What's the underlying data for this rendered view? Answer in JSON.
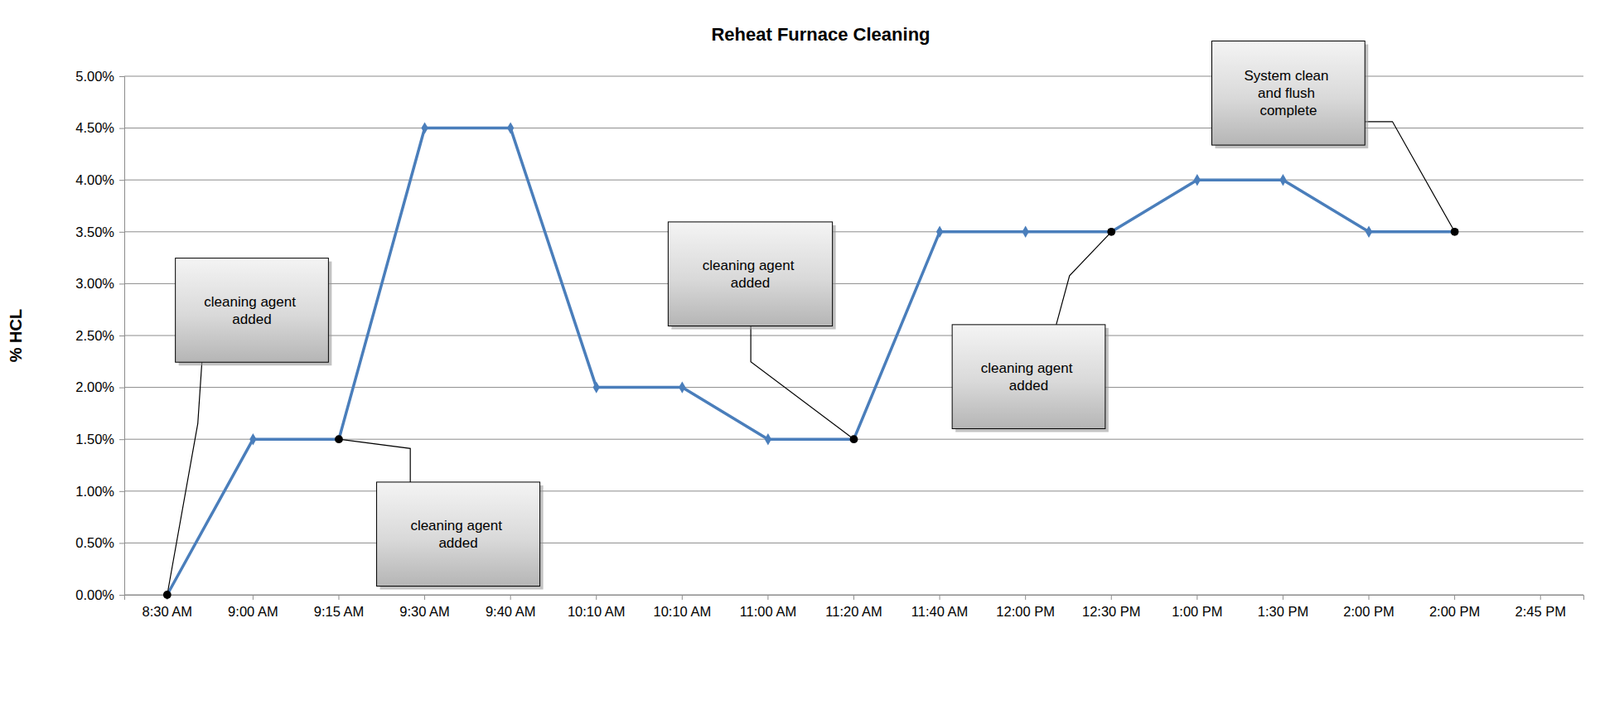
{
  "chart_data": {
    "type": "line",
    "title": "Reheat Furnace Cleaning",
    "y_label": "% HCL",
    "categories": [
      "8:30 AM",
      "9:00 AM",
      "9:15 AM",
      "9:30 AM",
      "9:40 AM",
      "10:10 AM",
      "10:10 AM",
      "11:00 AM",
      "11:20 AM",
      "11:40 AM",
      "12:00 PM",
      "12:30 PM",
      "1:00 PM",
      "1:30 PM",
      "2:00 PM",
      "2:00 PM",
      "2:45 PM"
    ],
    "values": [
      0,
      1.5,
      1.5,
      4.5,
      4.5,
      2.0,
      2.0,
      1.5,
      1.5,
      3.5,
      3.5,
      3.5,
      4.0,
      4.0,
      3.5,
      3.5,
      null
    ],
    "color": "#4a7ebb",
    "marker": "diamond",
    "ylim": [
      0,
      5
    ],
    "yticks": [
      {
        "value": 0,
        "label": "0.00%"
      },
      {
        "value": 0.5,
        "label": "0.50%"
      },
      {
        "value": 1,
        "label": "1.00%"
      },
      {
        "value": 1.5,
        "label": "1.50%"
      },
      {
        "value": 2,
        "label": "2.00%"
      },
      {
        "value": 2.5,
        "label": "2.50%"
      },
      {
        "value": 3,
        "label": "3.00%"
      },
      {
        "value": 3.5,
        "label": "3.50%"
      },
      {
        "value": 4,
        "label": "4.00%"
      },
      {
        "value": 4.5,
        "label": "4.50%"
      },
      {
        "value": 5,
        "label": "5.00%"
      }
    ],
    "grid": true,
    "annotations": [
      {
        "text": "cleaning agent added",
        "point": 0
      },
      {
        "text": "cleaning agent added",
        "point": 2
      },
      {
        "text": "cleaning agent added",
        "point": 8
      },
      {
        "text": "cleaning agent added",
        "point": 11
      },
      {
        "text": "System clean and flush complete",
        "point": 15
      }
    ]
  }
}
